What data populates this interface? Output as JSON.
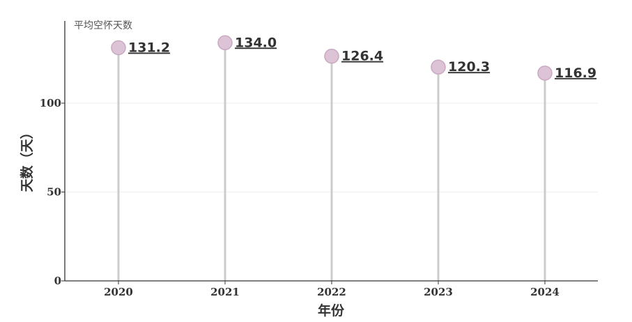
{
  "chart_data": {
    "type": "lollipop",
    "series_label": "平均空怀天数",
    "xlabel": "年份",
    "ylabel": "天数（天）",
    "categories": [
      "2020",
      "2021",
      "2022",
      "2023",
      "2024"
    ],
    "values": [
      131.2,
      134.0,
      126.4,
      120.3,
      116.9
    ],
    "value_labels": [
      "131.2",
      "134.0",
      "126.4",
      "120.3",
      "116.9"
    ],
    "yticks": [
      0,
      50,
      100
    ],
    "ytick_labels": [
      "0",
      "50",
      "100"
    ],
    "ylim": [
      0,
      145
    ],
    "grid": true,
    "colors": {
      "marker_fill": "#dcc3d6",
      "marker_stroke": "#c9a9c1",
      "stem": "#cccccc",
      "axis": "#333333",
      "grid": "#eeeeee"
    }
  }
}
